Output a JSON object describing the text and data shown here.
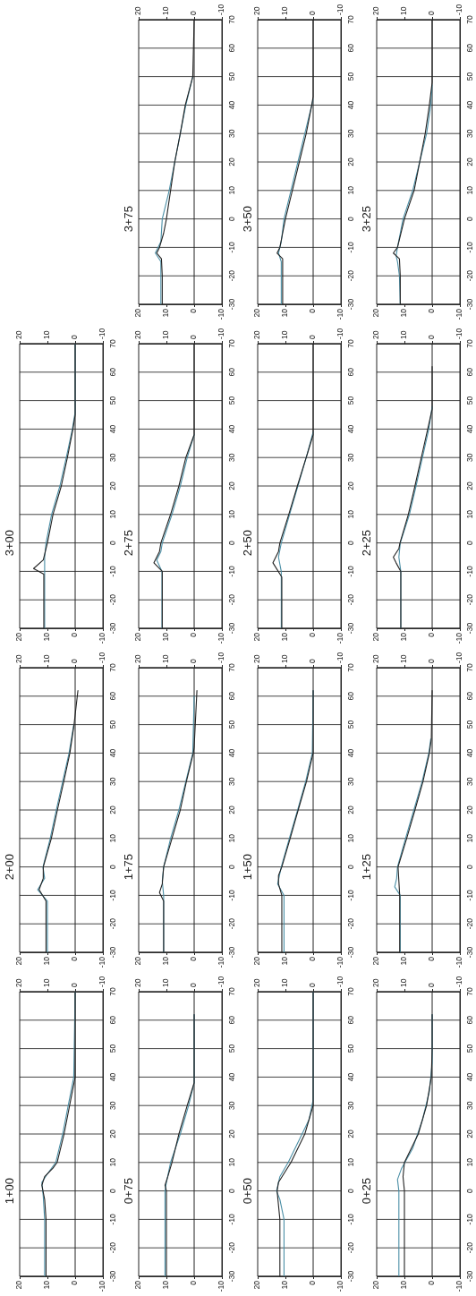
{
  "chart_data": [
    {
      "type": "line",
      "orientation": "horizontal",
      "title": "0+25",
      "xlim": [
        20,
        -10
      ],
      "xticks": [
        20,
        10,
        0,
        -10
      ],
      "x2lim": [
        20,
        -10
      ],
      "x2ticks": [
        20,
        10,
        0,
        -10
      ],
      "ylim": [
        -30,
        70
      ],
      "yticks": [
        -30,
        -20,
        -10,
        0,
        10,
        20,
        30,
        40,
        50,
        60,
        70
      ],
      "grid": "y",
      "ref_lines": [
        {
          "axis": "x",
          "value": 0
        }
      ],
      "series": [
        {
          "color": "#222222",
          "x": [
            -30,
            -10,
            0,
            5,
            10,
            20,
            30,
            40,
            50,
            62
          ],
          "values": [
            10,
            10,
            10,
            10.5,
            10,
            5,
            2,
            0.3,
            0,
            0
          ]
        },
        {
          "color": "#4b8fa6",
          "x": [
            -30,
            -10,
            0,
            4,
            8,
            15,
            25,
            35,
            45,
            62
          ],
          "values": [
            12,
            12,
            12,
            12.5,
            11,
            7,
            3.5,
            1,
            0,
            0
          ]
        }
      ]
    },
    {
      "type": "line",
      "orientation": "horizontal",
      "title": "0+50",
      "xlim": [
        20,
        -10
      ],
      "xticks": [
        20,
        10,
        0,
        -10
      ],
      "x2lim": [
        20,
        -10
      ],
      "x2ticks": [
        20,
        10,
        0,
        -10
      ],
      "ylim": [
        -30,
        70
      ],
      "yticks": [
        -30,
        -20,
        -10,
        0,
        10,
        20,
        30,
        40,
        50,
        60,
        70
      ],
      "grid": "y",
      "ref_lines": [
        {
          "axis": "x",
          "value": 0
        }
      ],
      "series": [
        {
          "color": "#222222",
          "x": [
            -30,
            -10,
            -5,
            0,
            3,
            10,
            20,
            30,
            70
          ],
          "values": [
            12,
            12,
            12.5,
            13,
            12.5,
            8,
            3,
            0,
            0
          ]
        },
        {
          "color": "#4b8fa6",
          "x": [
            -30,
            -10,
            -3,
            0,
            5,
            10,
            20,
            25,
            32,
            70
          ],
          "values": [
            10.5,
            10.5,
            12,
            13.2,
            12,
            9,
            4,
            1.5,
            0,
            0
          ]
        }
      ]
    },
    {
      "type": "line",
      "orientation": "horizontal",
      "title": "0+75",
      "xlim": [
        20,
        -10
      ],
      "xticks": [
        20,
        10,
        0,
        -10
      ],
      "x2lim": [
        20,
        -10
      ],
      "x2ticks": [
        20,
        10,
        0,
        -10
      ],
      "ylim": [
        -30,
        70
      ],
      "yticks": [
        -30,
        -20,
        -10,
        0,
        10,
        20,
        30,
        40,
        50,
        60,
        70
      ],
      "grid": "y",
      "ref_lines": [
        {
          "axis": "x",
          "value": 0
        }
      ],
      "series": [
        {
          "color": "#222222",
          "x": [
            -30,
            -10,
            0,
            2,
            5,
            10,
            20,
            30,
            38,
            50,
            62
          ],
          "values": [
            10,
            10,
            10,
            10.5,
            9.5,
            8,
            5.5,
            2.5,
            0,
            0,
            0
          ]
        },
        {
          "color": "#4b8fa6",
          "x": [
            -30,
            0,
            3,
            10,
            20,
            30,
            38,
            62
          ],
          "values": [
            10.5,
            10.5,
            10,
            8.5,
            5,
            2,
            0,
            0
          ]
        }
      ]
    },
    {
      "type": "line",
      "orientation": "horizontal",
      "title": "1+00",
      "xlim": [
        20,
        -10
      ],
      "xticks": [
        20,
        10,
        0,
        -10
      ],
      "x2lim": [
        20,
        -10
      ],
      "x2ticks": [
        20,
        10,
        0,
        -10
      ],
      "ylim": [
        -30,
        70
      ],
      "yticks": [
        -30,
        -20,
        -10,
        0,
        10,
        20,
        30,
        40,
        50,
        60,
        70
      ],
      "grid": "y",
      "ref_lines": [
        {
          "axis": "x",
          "value": 0
        }
      ],
      "series": [
        {
          "color": "#222222",
          "x": [
            -30,
            -20,
            -10,
            -3,
            2,
            5,
            8,
            10,
            20,
            30,
            40,
            50,
            70
          ],
          "values": [
            10.5,
            10.5,
            10.5,
            11,
            12,
            11,
            8,
            6.5,
            4,
            2,
            0,
            0,
            0
          ]
        },
        {
          "color": "#4b8fa6",
          "x": [
            -30,
            -10,
            -2,
            3,
            6,
            10,
            20,
            30,
            40,
            70
          ],
          "values": [
            11,
            11,
            11.5,
            12,
            10,
            7,
            4.5,
            2.5,
            0.5,
            0
          ]
        }
      ]
    },
    {
      "type": "line",
      "orientation": "horizontal",
      "title": "1+25",
      "xlim": [
        20,
        -10
      ],
      "xticks": [
        20,
        10,
        0,
        -10
      ],
      "x2lim": [
        20,
        -10
      ],
      "x2ticks": [
        20,
        10,
        0,
        -10
      ],
      "ylim": [
        -30,
        70
      ],
      "yticks": [
        -30,
        -20,
        -10,
        0,
        10,
        20,
        30,
        40,
        50,
        60,
        70
      ],
      "grid": "y",
      "ref_lines": [
        {
          "axis": "x",
          "value": 0
        }
      ],
      "series": [
        {
          "color": "#222222",
          "x": [
            -30,
            -20,
            -10,
            -5,
            0,
            10,
            20,
            30,
            40,
            45,
            62
          ],
          "values": [
            11.7,
            11.7,
            11.7,
            12,
            12.3,
            9.2,
            6.2,
            3.3,
            1,
            0.3,
            0
          ]
        },
        {
          "color": "#4b8fa6",
          "x": [
            -30,
            -10,
            -7,
            -4,
            0,
            10,
            20,
            30,
            40,
            45
          ],
          "values": [
            11.5,
            11.5,
            13.5,
            12.8,
            12.5,
            9.6,
            6.6,
            3.6,
            1.2,
            0.5
          ]
        }
      ]
    },
    {
      "type": "line",
      "orientation": "horizontal",
      "title": "1+50",
      "xlim": [
        20,
        -10
      ],
      "xticks": [
        20,
        10,
        0,
        -10
      ],
      "x2lim": [
        20,
        -10
      ],
      "x2ticks": [
        20,
        10,
        0,
        -10
      ],
      "ylim": [
        -30,
        70
      ],
      "yticks": [
        -30,
        -20,
        -10,
        0,
        10,
        20,
        30,
        40,
        50,
        60,
        70
      ],
      "grid": "y",
      "ref_lines": [
        {
          "axis": "x",
          "value": 0
        }
      ],
      "series": [
        {
          "color": "#222222",
          "x": [
            -30,
            -10,
            -6,
            -3,
            0,
            10,
            20,
            30,
            40,
            62
          ],
          "values": [
            11.3,
            11.3,
            12.5,
            12.5,
            11.3,
            8.3,
            5.4,
            2.4,
            0,
            0
          ]
        },
        {
          "color": "#4b8fa6",
          "x": [
            -30,
            -10,
            -6,
            0,
            10,
            20,
            30,
            40,
            62
          ],
          "values": [
            10.5,
            10.5,
            12.8,
            11.5,
            8.6,
            5.6,
            2.7,
            0.3,
            0
          ]
        }
      ]
    },
    {
      "type": "line",
      "orientation": "horizontal",
      "title": "1+75",
      "xlim": [
        20,
        -10
      ],
      "xticks": [
        20,
        10,
        0,
        -10
      ],
      "x2lim": [
        20,
        -10
      ],
      "x2ticks": [
        20,
        10,
        0,
        -10
      ],
      "ylim": [
        -30,
        70
      ],
      "yticks": [
        -30,
        -20,
        -10,
        0,
        10,
        20,
        30,
        40,
        50,
        60,
        70
      ],
      "grid": "y",
      "ref_lines": [
        {
          "axis": "x",
          "value": 0
        }
      ],
      "series": [
        {
          "color": "#222222",
          "x": [
            -30,
            -20,
            -12,
            -9,
            -6,
            0,
            10,
            20,
            30,
            40,
            42,
            62
          ],
          "values": [
            11,
            11,
            11,
            12.5,
            11.5,
            11,
            8,
            5,
            2.8,
            0.3,
            0,
            -1
          ]
        },
        {
          "color": "#4b8fa6",
          "x": [
            -30,
            -10,
            -5,
            0,
            10,
            20,
            30,
            40,
            60
          ],
          "values": [
            11,
            11,
            11.5,
            11,
            8.5,
            5.5,
            3,
            0.5,
            0
          ]
        }
      ]
    },
    {
      "type": "line",
      "orientation": "horizontal",
      "title": "2+00",
      "xlim": [
        20,
        -10
      ],
      "xticks": [
        20,
        10,
        0,
        -10
      ],
      "x2lim": [
        20,
        -10
      ],
      "x2ticks": [
        20,
        10,
        0,
        -10
      ],
      "ylim": [
        -30,
        70
      ],
      "yticks": [
        -30,
        -20,
        -10,
        0,
        10,
        20,
        30,
        40,
        50,
        60,
        70
      ],
      "grid": "y",
      "ref_lines": [
        {
          "axis": "x",
          "value": 0
        }
      ],
      "series": [
        {
          "color": "#222222",
          "x": [
            -30,
            -20,
            -12,
            -8,
            -4,
            0,
            10,
            20,
            30,
            40,
            50,
            62
          ],
          "values": [
            10.5,
            10.5,
            10.5,
            13,
            11.5,
            11.5,
            8.6,
            6.4,
            4.1,
            1.9,
            0.4,
            -1
          ]
        },
        {
          "color": "#4b8fa6",
          "x": [
            -30,
            -12,
            -8,
            -4,
            0,
            10,
            20,
            30,
            40,
            50
          ],
          "values": [
            10,
            10,
            13.5,
            11,
            11.6,
            9,
            6.8,
            4.5,
            2.2,
            0.5
          ]
        }
      ]
    },
    {
      "type": "line",
      "orientation": "horizontal",
      "title": "2+25",
      "xlim": [
        20,
        -10
      ],
      "xticks": [
        20,
        10,
        0,
        -10
      ],
      "x2lim": [
        20,
        -10
      ],
      "x2ticks": [
        20,
        10,
        0,
        -10
      ],
      "ylim": [
        -30,
        70
      ],
      "yticks": [
        -30,
        -20,
        -10,
        0,
        10,
        20,
        30,
        40,
        50,
        60,
        70
      ],
      "grid": "y",
      "ref_lines": [
        {
          "axis": "x",
          "value": 0
        }
      ],
      "series": [
        {
          "color": "#222222",
          "x": [
            -30,
            -20,
            -10,
            -7,
            -5,
            -2,
            0,
            10,
            20,
            30,
            40,
            47,
            62
          ],
          "values": [
            11.3,
            11.3,
            11.3,
            13,
            14,
            12,
            11.6,
            8.6,
            6.2,
            3.9,
            1.6,
            0,
            0
          ]
        },
        {
          "color": "#4b8fa6",
          "x": [
            -30,
            -10,
            -5,
            0,
            10,
            20,
            30,
            40,
            48
          ],
          "values": [
            11.3,
            11.3,
            12,
            11.5,
            8.2,
            5.8,
            3.5,
            1.2,
            0
          ]
        }
      ]
    },
    {
      "type": "line",
      "orientation": "horizontal",
      "title": "2+50",
      "xlim": [
        20,
        -10
      ],
      "xticks": [
        20,
        10,
        0,
        -10
      ],
      "x2lim": [
        20,
        -10
      ],
      "x2ticks": [
        20,
        10,
        0,
        -10
      ],
      "ylim": [
        -30,
        70
      ],
      "yticks": [
        -30,
        -20,
        -10,
        0,
        10,
        20,
        30,
        40,
        50,
        60,
        70
      ],
      "grid": "y",
      "ref_lines": [
        {
          "axis": "x",
          "value": 0
        }
      ],
      "series": [
        {
          "color": "#222222",
          "x": [
            -30,
            -20,
            -12,
            -7,
            -3,
            0,
            10,
            20,
            30,
            38,
            70
          ],
          "values": [
            11.3,
            11.3,
            11.3,
            14.5,
            12.5,
            12,
            8.8,
            5.7,
            2.5,
            0,
            0
          ]
        },
        {
          "color": "#4b8fa6",
          "x": [
            -30,
            -10,
            -5,
            0,
            10,
            20,
            30,
            39
          ],
          "values": [
            11.5,
            11.5,
            12.5,
            11.5,
            8.5,
            5.5,
            2.5,
            0
          ]
        }
      ]
    },
    {
      "type": "line",
      "orientation": "horizontal",
      "title": "2+75",
      "xlim": [
        20,
        -10
      ],
      "xticks": [
        20,
        10,
        0,
        -10
      ],
      "x2lim": [
        20,
        -10
      ],
      "x2ticks": [
        20,
        10,
        0,
        -10
      ],
      "ylim": [
        -30,
        70
      ],
      "yticks": [
        -30,
        -20,
        -10,
        0,
        10,
        20,
        30,
        40,
        50,
        60,
        70
      ],
      "grid": "y",
      "ref_lines": [
        {
          "axis": "x",
          "value": 0
        }
      ],
      "series": [
        {
          "color": "#222222",
          "x": [
            -30,
            -20,
            -10,
            -7,
            -3,
            0,
            10,
            20,
            30,
            38,
            70
          ],
          "values": [
            11.5,
            11.5,
            11.5,
            14.5,
            12.5,
            12,
            8.5,
            5.5,
            3,
            0,
            0
          ]
        },
        {
          "color": "#4b8fa6",
          "x": [
            -30,
            -10,
            -6,
            -3,
            0,
            10,
            20,
            30,
            38
          ],
          "values": [
            11.6,
            11.6,
            13.5,
            12,
            11.5,
            8,
            5,
            2.5,
            0
          ]
        }
      ]
    },
    {
      "type": "line",
      "orientation": "horizontal",
      "title": "3+00",
      "xlim": [
        20,
        -10
      ],
      "xticks": [
        20,
        10,
        0,
        -10
      ],
      "x2lim": [
        20,
        -10
      ],
      "x2ticks": [
        20,
        10,
        0,
        -10
      ],
      "ylim": [
        -30,
        70
      ],
      "yticks": [
        -30,
        -20,
        -10,
        0,
        10,
        20,
        30,
        40,
        50,
        60,
        70
      ],
      "grid": "y",
      "ref_lines": [
        {
          "axis": "x",
          "value": 0
        }
      ],
      "series": [
        {
          "color": "#222222",
          "x": [
            -30,
            -20,
            -11,
            -9,
            -6,
            0,
            10,
            20,
            30,
            40,
            45,
            70
          ],
          "values": [
            11.3,
            11.3,
            11.3,
            15,
            11.5,
            10,
            8,
            5,
            2.8,
            0.8,
            0,
            0
          ]
        },
        {
          "color": "#4b8fa6",
          "x": [
            -30,
            -10,
            -5,
            0,
            10,
            20,
            30,
            40,
            46,
            70
          ],
          "values": [
            11,
            11,
            11,
            10.5,
            8.5,
            5.5,
            3.2,
            1,
            0,
            0
          ]
        }
      ]
    },
    {
      "type": "line",
      "orientation": "horizontal",
      "title": "3+25",
      "xlim": [
        20,
        -10
      ],
      "xticks": [
        20,
        10,
        0,
        -10
      ],
      "x2lim": [
        20,
        -10
      ],
      "x2ticks": [
        20,
        10,
        0,
        -10
      ],
      "ylim": [
        -30,
        70
      ],
      "yticks": [
        -30,
        -20,
        -10,
        0,
        10,
        20,
        30,
        40,
        50,
        60,
        70
      ],
      "grid": "y",
      "ref_lines": [
        {
          "axis": "x",
          "value": 0
        }
      ],
      "series": [
        {
          "color": "#222222",
          "x": [
            -30,
            -20,
            -14,
            -12,
            -10,
            0,
            10,
            20,
            30,
            40,
            48,
            70
          ],
          "values": [
            11.5,
            11.5,
            11.8,
            14,
            12.5,
            10,
            6.5,
            4.5,
            2.5,
            1,
            0,
            0
          ]
        },
        {
          "color": "#4b8fa6",
          "x": [
            -30,
            -20,
            -15,
            -13,
            -10,
            -5,
            0,
            10,
            20,
            30,
            40,
            47
          ],
          "values": [
            11.5,
            11.8,
            12.5,
            13,
            12.5,
            11.5,
            10.5,
            7,
            4.5,
            2,
            0.5,
            0
          ]
        }
      ]
    },
    {
      "type": "line",
      "orientation": "horizontal",
      "title": "3+50",
      "xlim": [
        20,
        -10
      ],
      "xticks": [
        20,
        10,
        0,
        -10
      ],
      "x2lim": [
        20,
        -10
      ],
      "x2ticks": [
        20,
        10,
        0,
        -10
      ],
      "ylim": [
        -30,
        70
      ],
      "yticks": [
        -30,
        -20,
        -10,
        0,
        10,
        20,
        30,
        40,
        50,
        60,
        70
      ],
      "grid": "y",
      "ref_lines": [
        {
          "axis": "x",
          "value": 0
        }
      ],
      "series": [
        {
          "color": "#222222",
          "x": [
            -30,
            -20,
            -14,
            -12,
            -10,
            -5,
            0,
            10,
            20,
            30,
            40,
            43,
            70
          ],
          "values": [
            11,
            11,
            11,
            13,
            12,
            11,
            10,
            7.5,
            5,
            2.5,
            0.5,
            0,
            0
          ]
        },
        {
          "color": "#4b8fa6",
          "x": [
            -30,
            -15,
            -12,
            -8,
            0,
            10,
            20,
            30,
            42
          ],
          "values": [
            11.5,
            11.5,
            12.5,
            11.5,
            10.5,
            8,
            5.5,
            3,
            0
          ]
        }
      ]
    },
    {
      "type": "line",
      "orientation": "horizontal",
      "title": "3+75",
      "xlim": [
        20,
        -10
      ],
      "xticks": [
        20,
        10,
        0,
        -10
      ],
      "x2lim": [
        20,
        -10
      ],
      "x2ticks": [
        20,
        10,
        0,
        -10
      ],
      "ylim": [
        -30,
        70
      ],
      "yticks": [
        -30,
        -20,
        -10,
        0,
        10,
        20,
        30,
        40,
        50,
        60,
        70
      ],
      "grid": "y",
      "ref_lines": [
        {
          "axis": "x",
          "value": 0
        }
      ],
      "series": [
        {
          "color": "#222222",
          "x": [
            -30,
            -20,
            -14,
            -12,
            -10,
            -5,
            0,
            10,
            20,
            30,
            40,
            50,
            70
          ],
          "values": [
            11.5,
            11.5,
            11.8,
            13.5,
            12.5,
            11,
            10,
            8.5,
            7,
            5,
            3.2,
            0.5,
            0
          ]
        },
        {
          "color": "#4b8fa6",
          "x": [
            -30,
            -15,
            -12,
            -8,
            0,
            10,
            20,
            30,
            40,
            50
          ],
          "values": [
            12,
            12,
            14,
            12,
            11.5,
            9,
            7,
            5,
            3,
            0.5
          ]
        }
      ]
    }
  ]
}
